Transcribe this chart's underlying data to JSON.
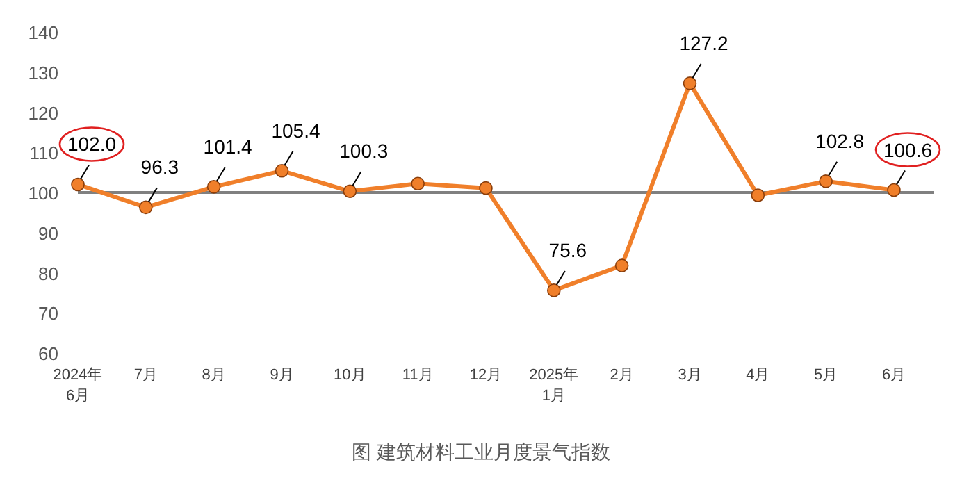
{
  "chart_data": {
    "type": "line",
    "title": "图 建筑材料工业月度景气指数",
    "categories": [
      "2024年\n6月",
      "7月",
      "8月",
      "9月",
      "10月",
      "11月",
      "12月",
      "2025年\n1月",
      "2月",
      "3月",
      "4月",
      "5月",
      "6月"
    ],
    "series": [
      {
        "color": "#f07f2a",
        "values": [
          102.0,
          96.3,
          101.4,
          105.4,
          100.3,
          102.2,
          101.1,
          75.6,
          81.8,
          127.2,
          99.3,
          102.8,
          100.6
        ],
        "value_labels": [
          "102.0",
          "96.3",
          "101.4",
          "105.4",
          "100.3",
          null,
          null,
          "75.6",
          null,
          "127.2",
          null,
          "102.8",
          "100.6"
        ]
      }
    ],
    "ylim": [
      60,
      140
    ],
    "yticks": [
      60,
      70,
      80,
      90,
      100,
      110,
      120,
      130,
      140
    ],
    "ref_lines": [
      {
        "axis": "y",
        "value": 100,
        "color": "#808080"
      }
    ],
    "grid": false,
    "marker": "circle",
    "line_style": "solid"
  }
}
